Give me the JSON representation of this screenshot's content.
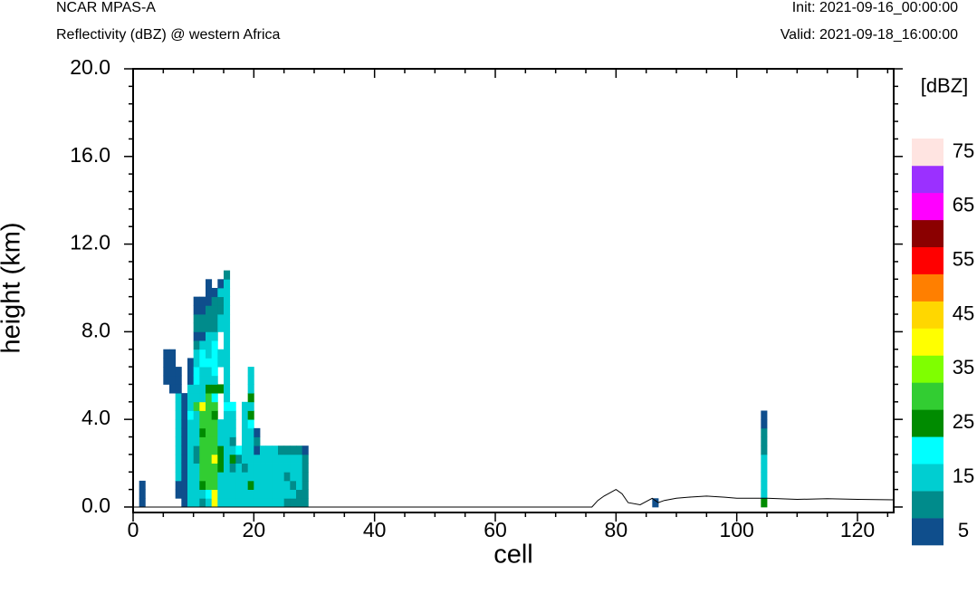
{
  "header": {
    "model": "NCAR MPAS-A",
    "field": "Reflectivity (dBZ) @ western Africa",
    "init": "Init: 2021-09-16_00:00:00",
    "valid": "Valid: 2021-09-18_16:00:00"
  },
  "chart_data": {
    "type": "heatmap",
    "xlabel": "cell",
    "ylabel": "height (km)",
    "xlim": [
      0,
      126
    ],
    "ylim": [
      0,
      20
    ],
    "x_ticks": [
      "0",
      "20",
      "40",
      "60",
      "80",
      "100",
      "120"
    ],
    "y_ticks": [
      "0.0",
      "4.0",
      "8.0",
      "12.0",
      "16.0",
      "20.0"
    ],
    "cell_width": 1,
    "layer_depth_km": 0.4,
    "colorbar": {
      "title": "[dBZ]",
      "bounds": [
        0,
        10,
        15,
        20,
        25,
        30,
        35,
        40,
        45,
        50,
        55,
        60,
        65,
        70,
        75
      ],
      "labels": [
        "5",
        "15",
        "25",
        "35",
        "45",
        "55",
        "65",
        "75"
      ],
      "colors": [
        "#0f4e8c",
        "#008b8b",
        "#00ced1",
        "#00ffff",
        "#008b00",
        "#32cd32",
        "#7fff00",
        "#ffff00",
        "#ffd700",
        "#ff7f00",
        "#ff0000",
        "#8b0000",
        "#ff00ff",
        "#9b30ff",
        "#ffe4e1"
      ]
    },
    "columns": [
      {
        "x": 1,
        "levels": [
          5,
          5,
          5,
          0
        ]
      },
      {
        "x": 5,
        "levels": [
          0,
          0,
          0,
          0,
          0,
          0,
          0,
          0,
          0,
          0,
          0,
          0,
          0,
          0,
          5,
          5,
          5,
          5
        ]
      },
      {
        "x": 6,
        "levels": [
          0,
          0,
          0,
          0,
          0,
          0,
          0,
          0,
          0,
          0,
          0,
          0,
          0,
          5,
          5,
          5,
          5,
          5
        ]
      },
      {
        "x": 7,
        "levels": [
          0,
          5,
          5,
          15,
          15,
          15,
          15,
          15,
          15,
          15,
          15,
          15,
          15,
          5,
          5,
          5
        ]
      },
      {
        "x": 8,
        "levels": [
          5,
          5,
          5,
          5,
          5,
          5,
          5,
          5,
          5,
          5,
          5,
          5,
          5
        ]
      },
      {
        "x": 9,
        "levels": [
          15,
          15,
          15,
          15,
          15,
          15,
          15,
          15,
          15,
          15,
          20,
          15,
          15,
          15,
          5,
          5,
          5
        ]
      },
      {
        "x": 10,
        "levels": [
          15,
          15,
          15,
          15,
          15,
          10,
          10,
          15,
          15,
          15,
          15,
          30,
          15,
          15,
          20,
          20,
          15,
          15,
          10,
          5,
          10,
          10,
          5,
          5
        ]
      },
      {
        "x": 11,
        "levels": [
          10,
          15,
          25,
          30,
          30,
          30,
          30,
          30,
          25,
          30,
          30,
          40,
          15,
          15,
          15,
          15,
          20,
          20,
          15,
          5,
          10,
          10,
          5,
          5
        ]
      },
      {
        "x": 12,
        "levels": [
          15,
          20,
          30,
          30,
          30,
          30,
          30,
          30,
          30,
          30,
          30,
          30,
          30,
          25,
          15,
          15,
          20,
          15,
          15,
          15,
          10,
          10,
          10,
          5,
          5,
          5
        ]
      },
      {
        "x": 13,
        "levels": [
          40,
          40,
          30,
          30,
          30,
          40,
          30,
          30,
          30,
          30,
          25,
          30,
          20,
          25,
          15,
          20,
          20,
          20,
          20,
          15,
          10,
          10,
          10,
          10,
          5
        ]
      },
      {
        "x": 14,
        "levels": [
          15,
          15,
          15,
          15,
          25,
          25,
          25,
          15,
          15,
          15,
          0,
          0,
          0,
          25,
          0,
          0,
          15,
          15,
          0,
          0,
          15,
          15,
          10,
          10,
          15,
          5
        ]
      },
      {
        "x": 15,
        "levels": [
          15,
          15,
          15,
          15,
          15,
          15,
          15,
          15,
          15,
          15,
          15,
          20,
          15,
          15,
          15,
          15,
          15,
          15,
          15,
          15,
          15,
          15,
          15,
          15,
          15,
          15,
          10
        ]
      },
      {
        "x": 16,
        "levels": [
          15,
          15,
          15,
          15,
          10,
          25,
          15,
          10,
          15,
          15,
          15,
          20
        ]
      },
      {
        "x": 17,
        "levels": [
          15,
          15,
          15,
          15,
          15,
          10,
          20
        ]
      },
      {
        "x": 18,
        "levels": [
          15,
          15,
          15,
          15,
          10,
          15,
          15,
          15,
          15,
          15,
          15,
          15
        ]
      },
      {
        "x": 19,
        "levels": [
          15,
          15,
          25,
          15,
          15,
          15,
          15,
          15,
          15,
          20,
          25,
          15,
          25,
          15,
          15,
          15
        ]
      },
      {
        "x": 20,
        "levels": [
          15,
          15,
          15,
          15,
          15,
          15,
          5,
          10,
          5
        ]
      },
      {
        "x": 21,
        "levels": [
          15,
          15,
          15,
          15,
          15,
          15,
          15
        ]
      },
      {
        "x": 22,
        "levels": [
          15,
          15,
          15,
          15,
          15,
          15,
          15
        ]
      },
      {
        "x": 23,
        "levels": [
          15,
          15,
          15,
          15,
          15,
          15,
          15
        ]
      },
      {
        "x": 24,
        "levels": [
          15,
          15,
          15,
          15,
          15,
          15,
          10
        ]
      },
      {
        "x": 25,
        "levels": [
          10,
          15,
          15,
          10,
          15,
          15,
          10
        ]
      },
      {
        "x": 26,
        "levels": [
          10,
          15,
          10,
          15,
          15,
          15,
          10
        ]
      },
      {
        "x": 27,
        "levels": [
          10,
          10,
          15,
          15,
          15,
          15,
          10
        ]
      },
      {
        "x": 28,
        "levels": [
          10,
          10,
          10,
          10,
          10,
          10,
          5
        ]
      },
      {
        "x": 86,
        "levels": [
          5
        ]
      },
      {
        "x": 104,
        "levels": [
          25,
          15,
          15,
          15,
          15,
          15,
          10,
          10,
          10,
          5,
          5
        ]
      }
    ],
    "terrain": [
      [
        0,
        0.0
      ],
      [
        76,
        0.0
      ],
      [
        77,
        0.3
      ],
      [
        78,
        0.5
      ],
      [
        80,
        0.8
      ],
      [
        81,
        0.6
      ],
      [
        82,
        0.2
      ],
      [
        84,
        0.1
      ],
      [
        86,
        0.4
      ],
      [
        87,
        0.2
      ],
      [
        88,
        0.3
      ],
      [
        90,
        0.4
      ],
      [
        92,
        0.45
      ],
      [
        95,
        0.5
      ],
      [
        98,
        0.45
      ],
      [
        100,
        0.4
      ],
      [
        103,
        0.4
      ],
      [
        105,
        0.4
      ],
      [
        110,
        0.35
      ],
      [
        115,
        0.38
      ],
      [
        120,
        0.35
      ],
      [
        126,
        0.33
      ]
    ]
  }
}
